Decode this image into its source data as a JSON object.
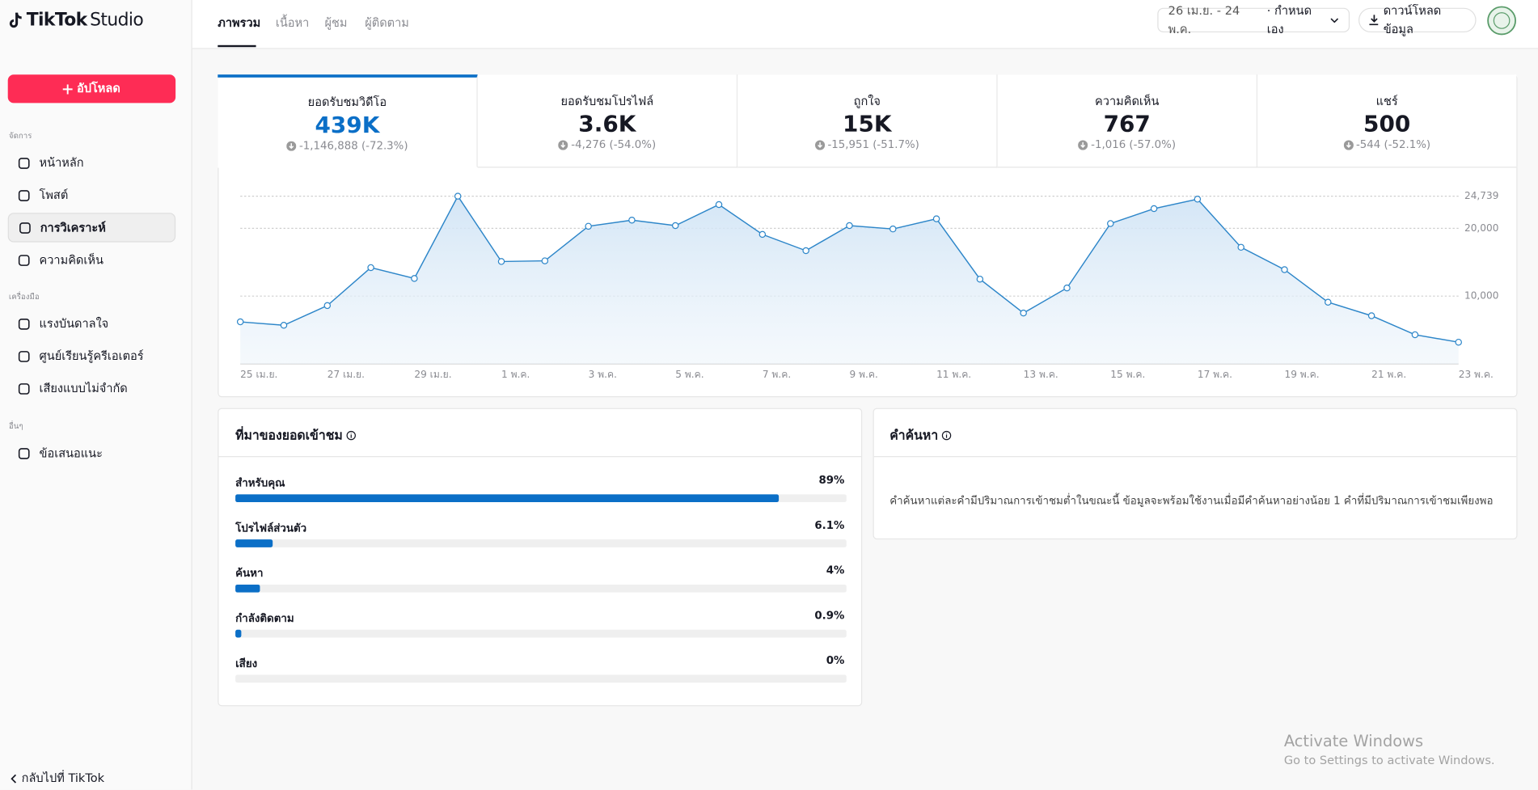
{
  "brand": "TikTok",
  "product": "Studio",
  "tabs": [
    "ภาพรวม",
    "เนื้อหา",
    "ผู้ชม",
    "ผู้ติดตาม"
  ],
  "date_range": "26 เม.ย. - 24 พ.ค.",
  "date_mode": "· กำหนดเอง",
  "download": "ดาวน์โหลดข้อมูล",
  "sidebar": {
    "upload": "อัปโหลด",
    "sections": [
      {
        "title": "จัดการ",
        "items": [
          "หน้าหลัก",
          "โพสต์",
          "การวิเคราะห์",
          "ความคิดเห็น"
        ]
      },
      {
        "title": "เครื่องมือ",
        "items": [
          "แรงบันดาลใจ",
          "ศูนย์เรียนรู้ครีเอเตอร์",
          "เสียงแบบไม่จำกัด"
        ]
      },
      {
        "title": "อื่นๆ",
        "items": [
          "ข้อเสนอแนะ"
        ]
      }
    ],
    "back": "กลับไปที่ TikTok"
  },
  "metrics": [
    {
      "label": "ยอดรับชมวิดีโอ",
      "value": "439K",
      "change": "-1,146,888 (-72.3%)"
    },
    {
      "label": "ยอดรับชมโปรไฟล์",
      "value": "3.6K",
      "change": "-4,276 (-54.0%)"
    },
    {
      "label": "ถูกใจ",
      "value": "15K",
      "change": "-15,951 (-51.7%)"
    },
    {
      "label": "ความคิดเห็น",
      "value": "767",
      "change": "-1,016 (-57.0%)"
    },
    {
      "label": "แชร์",
      "value": "500",
      "change": "-544 (-52.1%)"
    }
  ],
  "chart_data": {
    "type": "area",
    "categories": [
      "25 เม.ย.",
      null,
      "27 เม.ย.",
      null,
      "29 เม.ย.",
      null,
      "1 พ.ค.",
      null,
      "3 พ.ค.",
      null,
      "5 พ.ค.",
      null,
      "7 พ.ค.",
      null,
      "9 พ.ค.",
      null,
      "11 พ.ค.",
      null,
      "13 พ.ค.",
      null,
      "15 พ.ค.",
      null,
      "17 พ.ค.",
      null,
      "19 พ.ค.",
      null,
      "21 พ.ค.",
      null,
      "23 พ.ค."
    ],
    "values": [
      6200,
      5700,
      8600,
      14200,
      12600,
      24739,
      15100,
      15200,
      20300,
      21200,
      20400,
      23500,
      19100,
      16700,
      20400,
      19900,
      21400,
      12500,
      7500,
      11200,
      20700,
      22900,
      24300,
      17200,
      13900,
      9100,
      7100,
      4300,
      3200
    ],
    "color": "#2d86c9",
    "ylim": [
      0,
      24739
    ],
    "yticks": [
      {
        "value": 10000,
        "label": "10,000"
      },
      {
        "value": 20000,
        "label": "20,000"
      },
      {
        "value": 24739,
        "label": "24,739"
      }
    ],
    "grid": true
  },
  "traffic": {
    "title": "ที่มาของยอดเข้าชม",
    "items": [
      {
        "name": "สำหรับคุณ",
        "value": 89,
        "label": "89%"
      },
      {
        "name": "โปรไฟล์ส่วนตัว",
        "value": 6.1,
        "label": "6.1%"
      },
      {
        "name": "ค้นหา",
        "value": 4,
        "label": "4%"
      },
      {
        "name": "กำลังติดตาม",
        "value": 0.9,
        "label": "0.9%"
      },
      {
        "name": "เสียง",
        "value": 0,
        "label": "0%"
      }
    ],
    "color": "#0b6fc7"
  },
  "search": {
    "title": "คำค้นหา",
    "message": "คำค้นหาแต่ละคำมีปริมาณการเข้าชมต่ำในขณะนี้ ข้อมูลจะพร้อมใช้งานเมื่อมีคำค้นหาอย่างน้อย 1 คำที่มีปริมาณการเข้าชมเพียงพอ"
  },
  "watermark": {
    "title": "Activate Windows",
    "subtitle": "Go to Settings to activate Windows."
  }
}
